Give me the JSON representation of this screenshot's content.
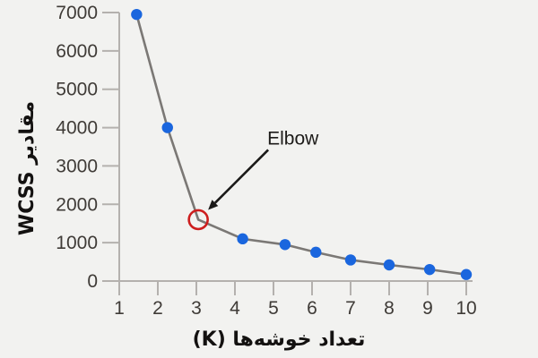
{
  "chart_data": {
    "type": "line",
    "title": "",
    "xlabel": "تعداد خوشه‌ها (K)",
    "ylabel": "مقادیر WCSS",
    "x_ticks": [
      1,
      2,
      3,
      4,
      5,
      6,
      7,
      8,
      9,
      10
    ],
    "y_ticks": [
      0,
      1000,
      2000,
      3000,
      4000,
      5000,
      6000,
      7000
    ],
    "xlim": [
      1,
      10
    ],
    "ylim": [
      0,
      7000
    ],
    "grid": false,
    "legend": false,
    "series": [
      {
        "name": "WCSS",
        "points": [
          {
            "k": 1.45,
            "wcss": 6950
          },
          {
            "k": 2.25,
            "wcss": 4000
          },
          {
            "k": 3.05,
            "wcss": 1600,
            "elbow": true
          },
          {
            "k": 4.2,
            "wcss": 1100
          },
          {
            "k": 5.3,
            "wcss": 950
          },
          {
            "k": 6.1,
            "wcss": 750
          },
          {
            "k": 7.0,
            "wcss": 550
          },
          {
            "k": 8.0,
            "wcss": 420
          },
          {
            "k": 9.05,
            "wcss": 300
          },
          {
            "k": 10.0,
            "wcss": 170
          }
        ]
      }
    ],
    "annotation": {
      "label": "Elbow",
      "text_at_k": 4.84,
      "text_at_wcss": 3560,
      "points_to_k": 3.05,
      "points_to_wcss": 1600
    },
    "colors": {
      "background": "#f2f2f0",
      "axis": "#b4b1ae",
      "tick_label": "#3f3b37",
      "line": "#7b7875",
      "point": "#1a66de",
      "elbow_ring": "#cd1e1e",
      "annotation_text": "#1d1b19",
      "annotation_arrow": "#1a1918",
      "axis_title": "#131110"
    }
  }
}
